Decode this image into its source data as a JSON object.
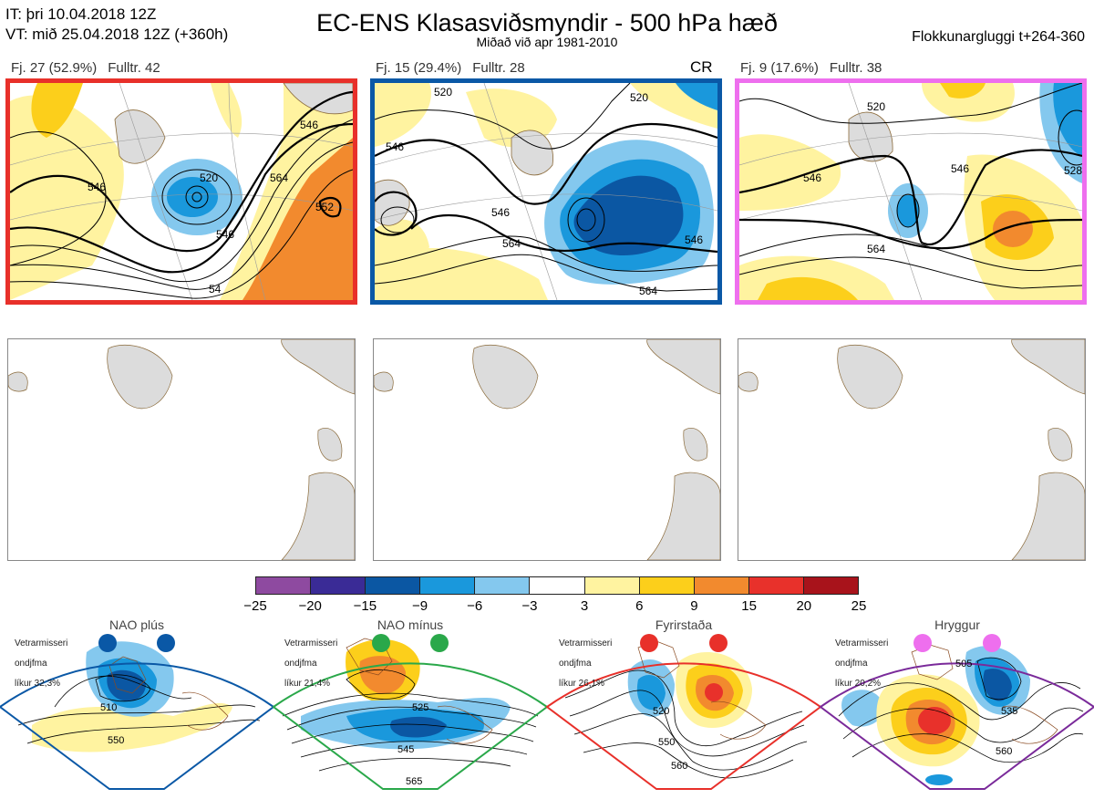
{
  "header": {
    "line_it": "IT: þri 10.04.2018 12Z",
    "line_vt": "VT: mið 25.04.2018 12Z  (+360h)",
    "title": "EC-ENS Klasasviðsmyndir - 500 hPa hæð",
    "subtitle": "Miðað við apr 1981-2010",
    "right": "Flokkunargluggi t+264-360"
  },
  "clusters": [
    {
      "label": "Fj. 27 (52.9%)",
      "rep": "Fulltr. 42",
      "tag": "",
      "border_color": "#e8302a",
      "contours": [
        "546",
        "520",
        "564",
        "546",
        "546",
        "552",
        "54"
      ]
    },
    {
      "label": "Fj. 15 (29.4%)",
      "rep": "Fulltr. 28",
      "tag": "CR",
      "border_color": "#0a58a6",
      "contours": [
        "546",
        "520",
        "520",
        "546",
        "564",
        "564",
        "546"
      ]
    },
    {
      "label": "Fj. 9 (17.6%)",
      "rep": "Fulltr. 38",
      "tag": "",
      "border_color": "#ee6fee",
      "contours": [
        "520",
        "546",
        "546",
        "564",
        "528"
      ]
    }
  ],
  "colorbar": {
    "colors": [
      "#8e4aa0",
      "#3a2b96",
      "#0b57a3",
      "#1a98dc",
      "#84c8ee",
      "#ffffff",
      "#fff3a0",
      "#fccf1b",
      "#f28a2e",
      "#e8312b",
      "#a8131b"
    ],
    "ticks": [
      "−25",
      "−20",
      "−15",
      "−9",
      "−6",
      "−3",
      "3",
      "6",
      "9",
      "15",
      "20",
      "25"
    ]
  },
  "regimes": [
    {
      "name": "NAO plús",
      "note_line1": "Vetrarmisseri",
      "note_line2": "ondjfma",
      "note_line3": "líkur 32,3%",
      "border_color": "#0a58a6",
      "dot_color": "#0a58a6",
      "contours": [
        "510",
        "550"
      ]
    },
    {
      "name": "NAO mínus",
      "note_line1": "Vetrarmisseri",
      "note_line2": "ondjfma",
      "note_line3": "líkur 21,4%",
      "border_color": "#2aa84a",
      "dot_color": "#2aa84a",
      "contours": [
        "525",
        "545",
        "565"
      ]
    },
    {
      "name": "Fyrirstaða",
      "note_line1": "Vetrarmisseri",
      "note_line2": "ondjfma",
      "note_line3": "líkur 26,1%",
      "border_color": "#e8302a",
      "dot_color": "#e8302a",
      "contours": [
        "520",
        "550",
        "560"
      ]
    },
    {
      "name": "Hryggur",
      "note_line1": "Vetrarmisseri",
      "note_line2": "ondjfma",
      "note_line3": "líkur 20,2%",
      "border_color": "#7a2a9a",
      "dot_color": "#ee6fee",
      "contours": [
        "505",
        "535",
        "560"
      ]
    }
  ]
}
